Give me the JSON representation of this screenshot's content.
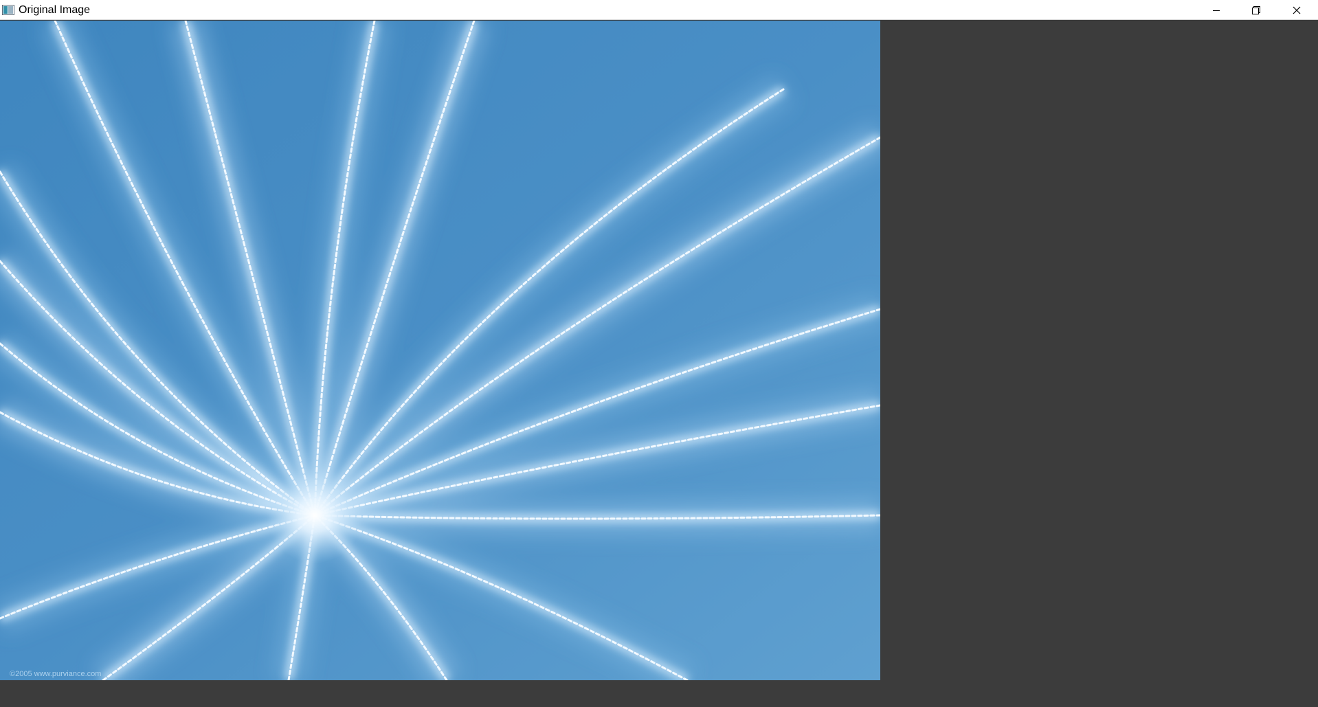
{
  "window": {
    "title": "Original Image",
    "icon": "image-window-icon",
    "controls": {
      "minimize_icon": "minimize-icon",
      "restore_icon": "restore-icon",
      "close_icon": "close-icon"
    }
  },
  "image": {
    "description_icon": "photo",
    "watermark": "©2005 www.purviance.com"
  },
  "colors": {
    "background": "#3c3c3c",
    "titlebar": "#ffffff",
    "image_base": "#4a8ec4",
    "image_highlight": "#e8f4ff"
  }
}
